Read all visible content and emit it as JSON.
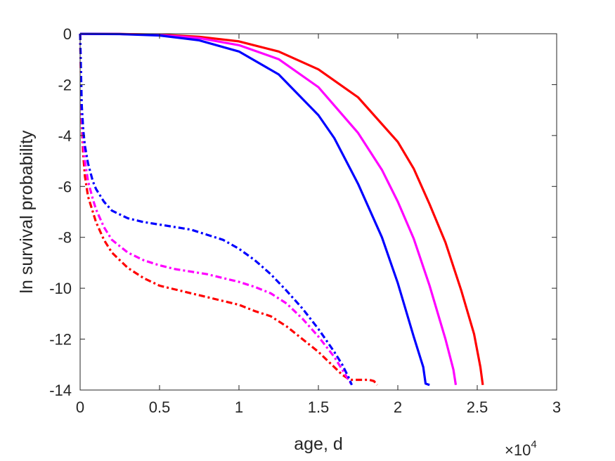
{
  "chart_data": {
    "type": "line",
    "title": "",
    "xlabel": "age, d",
    "ylabel": "ln survival probability",
    "x_multiplier_label": "×10",
    "x_multiplier_exponent": "4",
    "x_scale": 10000,
    "xlim": [
      0,
      30000
    ],
    "ylim": [
      -14,
      0
    ],
    "grid": false,
    "legend": "none",
    "x_ticks": [
      0,
      5000,
      10000,
      15000,
      20000,
      25000,
      30000
    ],
    "x_tick_labels": [
      "0",
      "0.5",
      "1",
      "1.5",
      "2",
      "2.5",
      "3"
    ],
    "y_ticks": [
      0,
      -2,
      -4,
      -6,
      -8,
      -10,
      -12,
      -14
    ],
    "y_tick_labels": [
      "0",
      "-2",
      "-4",
      "-6",
      "-8",
      "-10",
      "-12",
      "-14"
    ],
    "series": [
      {
        "color": "#ff0000",
        "style": "solid",
        "x": [
          0,
          2500,
          5000,
          7500,
          10000,
          12500,
          15000,
          17500,
          20000,
          21000,
          22000,
          23000,
          24000,
          24800,
          25200,
          25350
        ],
        "y": [
          -0.005,
          -0.01,
          -0.04,
          -0.12,
          -0.3,
          -0.7,
          -1.4,
          -2.5,
          -4.25,
          -5.3,
          -6.7,
          -8.2,
          -10.1,
          -11.8,
          -13.1,
          -13.8
        ]
      },
      {
        "color": "#ff00ff",
        "style": "solid",
        "x": [
          0,
          2500,
          5000,
          7500,
          10000,
          12500,
          15000,
          17500,
          19000,
          20000,
          21000,
          22000,
          23000,
          23500,
          23650
        ],
        "y": [
          -0.005,
          -0.01,
          -0.05,
          -0.17,
          -0.45,
          -1.0,
          -2.1,
          -3.9,
          -5.35,
          -6.6,
          -8.05,
          -9.9,
          -12.0,
          -13.2,
          -13.8
        ]
      },
      {
        "color": "#0000ff",
        "style": "solid",
        "x": [
          0,
          2500,
          5000,
          7500,
          10000,
          12500,
          15000,
          16000,
          17500,
          19000,
          20000,
          21000,
          21600,
          21750,
          22000
        ],
        "y": [
          -0.005,
          -0.015,
          -0.07,
          -0.26,
          -0.7,
          -1.6,
          -3.2,
          -4.1,
          -5.9,
          -8.0,
          -9.8,
          -11.9,
          -13.1,
          -13.75,
          -13.8
        ]
      },
      {
        "color": "#ff0000",
        "style": "dashdot",
        "x": [
          0,
          100,
          200,
          300,
          500,
          800,
          1000,
          1500,
          2000,
          3000,
          4000,
          5000,
          6000,
          7000,
          8000,
          9000,
          10000,
          11000,
          12000,
          13000,
          14000,
          15000,
          16000,
          16500,
          17000,
          17300,
          17700,
          18200,
          18500,
          18700
        ],
        "y": [
          0,
          -3.5,
          -4.8,
          -5.6,
          -6.4,
          -7.0,
          -7.4,
          -8.1,
          -8.6,
          -9.2,
          -9.6,
          -9.9,
          -10.05,
          -10.2,
          -10.35,
          -10.5,
          -10.65,
          -10.9,
          -11.1,
          -11.5,
          -12.0,
          -12.5,
          -13.1,
          -13.4,
          -13.6,
          -13.6,
          -13.6,
          -13.6,
          -13.65,
          -13.8
        ]
      },
      {
        "color": "#ff00ff",
        "style": "dashdot",
        "x": [
          0,
          100,
          200,
          300,
          500,
          800,
          1000,
          1500,
          2000,
          3000,
          4000,
          5000,
          6000,
          7000,
          8000,
          9000,
          10000,
          11000,
          12000,
          13000,
          14000,
          15000,
          16000,
          16500,
          16900,
          17100
        ],
        "y": [
          0,
          -3.2,
          -4.3,
          -5.0,
          -5.8,
          -6.5,
          -6.9,
          -7.6,
          -8.1,
          -8.6,
          -8.9,
          -9.1,
          -9.25,
          -9.35,
          -9.45,
          -9.6,
          -9.75,
          -9.95,
          -10.2,
          -10.6,
          -11.2,
          -11.9,
          -12.7,
          -13.2,
          -13.6,
          -13.8
        ]
      },
      {
        "color": "#0000ff",
        "style": "dashdot",
        "x": [
          0,
          100,
          200,
          300,
          500,
          800,
          1000,
          1500,
          2000,
          3000,
          4000,
          5000,
          6000,
          7000,
          8000,
          9000,
          10000,
          11000,
          12000,
          13000,
          14000,
          15000,
          16000,
          16500,
          16900,
          17100
        ],
        "y": [
          0,
          -2.8,
          -3.8,
          -4.4,
          -5.1,
          -5.8,
          -6.1,
          -6.6,
          -6.95,
          -7.25,
          -7.4,
          -7.5,
          -7.6,
          -7.7,
          -7.9,
          -8.1,
          -8.45,
          -8.9,
          -9.45,
          -10.1,
          -10.8,
          -11.6,
          -12.5,
          -13.0,
          -13.5,
          -13.8
        ]
      }
    ]
  }
}
